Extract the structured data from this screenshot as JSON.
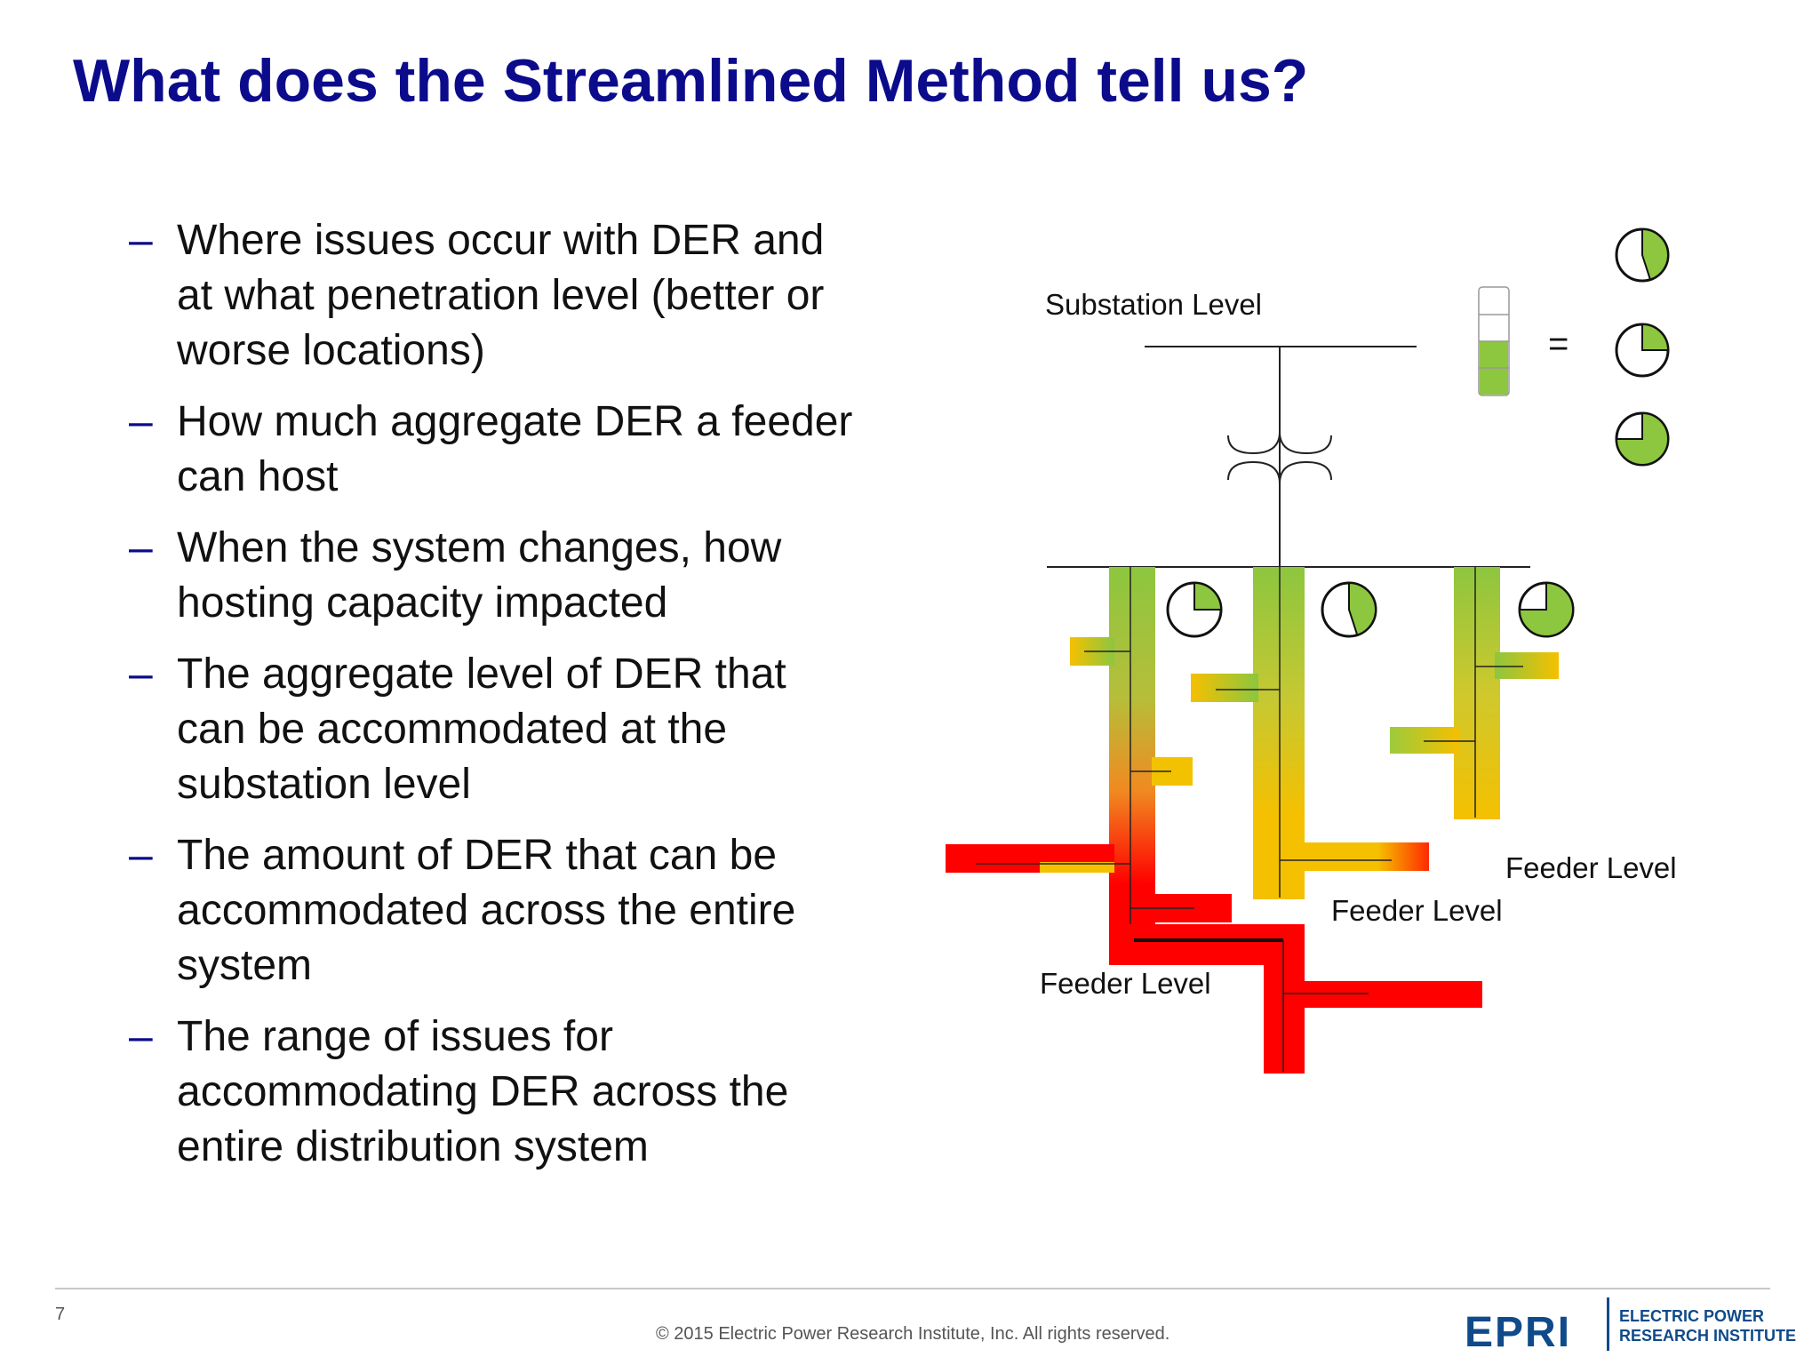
{
  "slide": {
    "title": "What does the Streamlined Method tell us?",
    "bullet_marker": "–",
    "bullets": [
      "Where issues occur with DER and at what penetration level (better or worse locations)",
      "How much aggregate DER a feeder can host",
      "When the system changes, how hosting capacity impacted",
      "The aggregate level of DER that can be accommodated at the substation level",
      "The amount of DER that can be accommodated across the entire system",
      "The range of issues for accommodating DER across the entire distribution system"
    ]
  },
  "diagram": {
    "substation_label": "Substation Level",
    "feeder_labels": [
      "Feeder Level",
      "Feeder Level",
      "Feeder Level"
    ],
    "equals_sign": "=",
    "colors": {
      "good": "#8dc63f",
      "medium": "#f5c000",
      "bad": "#ff0000"
    },
    "legend_pies_fraction": [
      0.45,
      0.25,
      0.75
    ],
    "feeder_pies_fraction": [
      0.25,
      0.45,
      0.75
    ],
    "legend_bar_fill_fraction": 0.5
  },
  "footer": {
    "page_number": "7",
    "copyright": "© 2015 Electric Power Research Institute, Inc. All rights reserved.",
    "logo_mark": "EPRI",
    "logo_line1": "ELECTRIC POWER",
    "logo_line2": "RESEARCH INSTITUTE"
  }
}
